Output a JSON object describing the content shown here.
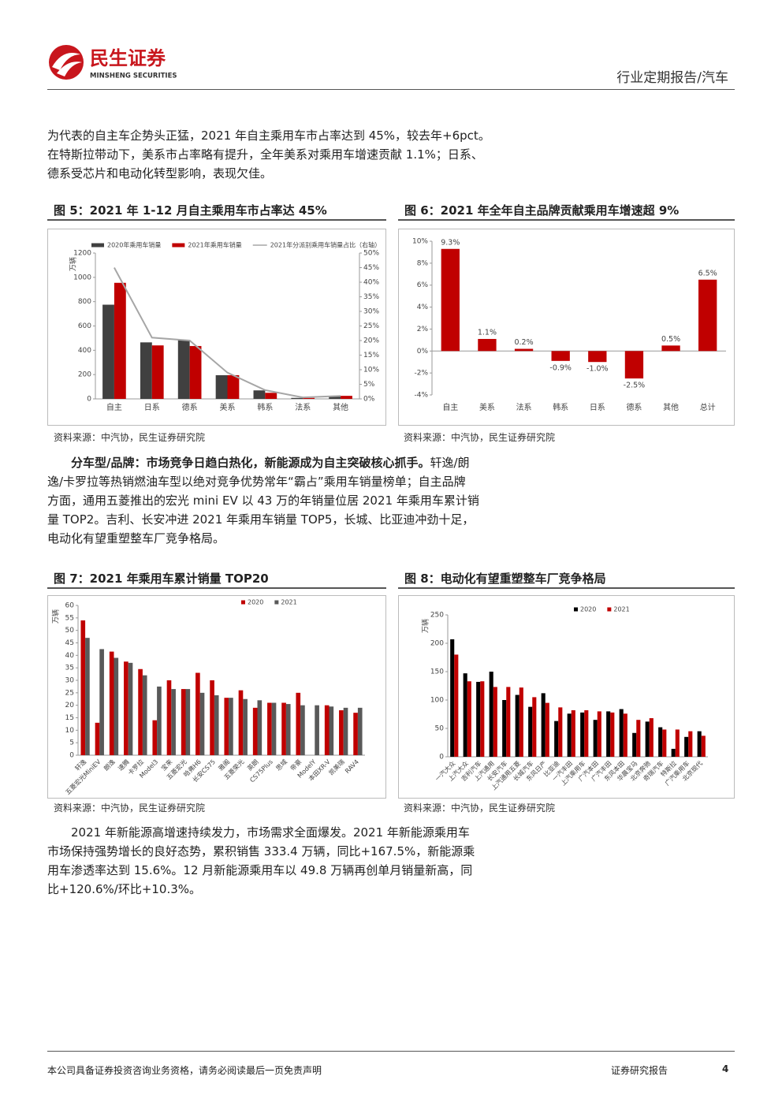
{
  "header": {
    "logo_cn": "民生证券",
    "logo_en": "MINSHENG SECURITIES",
    "right": "行业定期报告/汽车"
  },
  "paragraphs": [
    {
      "lines": [
        "为代表的自主车企势头正猛，2021 年自主乘用车市占率达到 45%，较去年+6pct。",
        "在特斯拉带动下，美系市占率略有提升，全年美系对乘用车增速贡献 1.1%；日系、",
        "德系受芯片和电动化转型影响，表现欠佳。"
      ]
    },
    {
      "lead": "分车型/品牌：市场竞争日趋白热化，新能源成为自主突破核心抓手。",
      "lines": [
        "轩逸/朗",
        "逸/卡罗拉等热销燃油车型以绝对竞争优势常年“霸占”乘用车销量榜单；自主品牌",
        "方面，通用五菱推出的宏光 mini EV 以 43 万的年销量位居 2021 年乘用车累计销",
        "量 TOP2。吉利、长安冲进 2021 年乘用车销量 TOP5，长城、比亚迪冲劲十足，",
        "电动化有望重塑整车厂竞争格局。"
      ]
    },
    {
      "lines": [
        "2021 年新能源高增速持续发力，市场需求全面爆发。2021 年新能源乘用车",
        "市场保持强势增长的良好态势，累积销售 333.4 万辆，同比+167.5%，新能源乘",
        "用车渗透率达到 15.6%。12 月新能源乘用车以 49.8 万辆再创单月销量新高，同",
        "比+120.6%/环比+10.3%。"
      ]
    }
  ],
  "chart_data": [
    {
      "type": "bar",
      "title": "图 5：2021 年 1-12 月自主乘用车市占率达 45%",
      "source": "资料来源：中汽协，民生证券研究院",
      "ylabel": "万辆",
      "categories": [
        "自主",
        "日系",
        "德系",
        "美系",
        "韩系",
        "法系",
        "其他"
      ],
      "series": [
        {
          "name": "2020年乘用车销量",
          "color": "#404040",
          "values": [
            775,
            465,
            485,
            195,
            70,
            8,
            20
          ]
        },
        {
          "name": "2021年乘用车销量",
          "color": "#c00000",
          "values": [
            955,
            440,
            435,
            195,
            50,
            8,
            25
          ]
        },
        {
          "name": "2021年分派别乘用车销量占比（右轴）",
          "color": "#a6a6a6",
          "type": "line",
          "axis": "y2",
          "values": [
            45,
            21,
            20,
            9,
            3,
            0.5,
            1
          ]
        }
      ],
      "ylim": [
        0,
        1200
      ],
      "yticks": [
        0,
        200,
        400,
        600,
        800,
        1000,
        1200
      ],
      "y2lim": [
        0,
        50
      ],
      "y2ticks": [
        {
          "value": 0,
          "label": "0%"
        },
        {
          "value": 5,
          "label": "5%"
        },
        {
          "value": 10,
          "label": "10%"
        },
        {
          "value": 15,
          "label": "15%"
        },
        {
          "value": 20,
          "label": "20%"
        },
        {
          "value": 25,
          "label": "25%"
        },
        {
          "value": 30,
          "label": "30%"
        },
        {
          "value": 35,
          "label": "35%"
        },
        {
          "value": 40,
          "label": "40%"
        },
        {
          "value": 45,
          "label": "45%"
        },
        {
          "value": 50,
          "label": "50%"
        }
      ],
      "legend": "top"
    },
    {
      "type": "bar",
      "title": "图 6：2021 年全年自主品牌贡献乘用车增速超 9%",
      "source": "资料来源：中汽协，民生证券研究院",
      "categories": [
        "自主",
        "美系",
        "法系",
        "韩系",
        "日系",
        "德系",
        "其他",
        "总计"
      ],
      "series": [
        {
          "color": "#c00000",
          "values": [
            9.3,
            1.1,
            0.2,
            -0.9,
            -1.0,
            -2.5,
            0.5,
            6.5
          ],
          "value_labels": [
            "9.3%",
            "1.1%",
            "0.2%",
            "-0.9%",
            "-1.0%",
            "-2.5%",
            "0.5%",
            "6.5%"
          ]
        }
      ],
      "ylim": [
        -4,
        10
      ],
      "yticks": [
        {
          "value": -4,
          "label": "-4%"
        },
        {
          "value": -2,
          "label": "-2%"
        },
        {
          "value": 0,
          "label": "0%"
        },
        {
          "value": 2,
          "label": "2%"
        },
        {
          "value": 4,
          "label": "4%"
        },
        {
          "value": 6,
          "label": "6%"
        },
        {
          "value": 8,
          "label": "8%"
        },
        {
          "value": 10,
          "label": "10%"
        }
      ]
    },
    {
      "type": "bar",
      "title": "图 7：2021 年乘用车累计销量 TOP20",
      "source": "资料来源：中汽协，民生证券研究院",
      "ylabel": "万辆",
      "x_label_rotation": 45,
      "categories": [
        "轩逸",
        "五菱宏光MiniEV",
        "朗逸",
        "速腾",
        "卡罗拉",
        "Model3",
        "宝来",
        "五菱宏光",
        "哈弗H6",
        "长安CS75",
        "雅阁",
        "五菱荣光",
        "英朗",
        "CS75Plus",
        "思域",
        "帝豪",
        "ModelY",
        "本田XR-V",
        "凯美瑞",
        "RAV4"
      ],
      "series": [
        {
          "name": "2020",
          "color": "#c00000",
          "values": [
            54,
            13,
            41.5,
            37.5,
            34.5,
            14,
            30,
            26.5,
            33,
            30,
            23,
            26,
            19,
            21,
            21,
            25,
            null,
            20,
            18,
            17
          ]
        },
        {
          "name": "2021",
          "color": "#595959",
          "values": [
            47,
            42.5,
            39,
            37,
            32,
            27.5,
            26.5,
            26.5,
            25,
            24,
            23,
            22.5,
            22,
            21,
            20.5,
            20,
            20,
            19.5,
            19,
            19
          ]
        }
      ],
      "ylim": [
        0,
        60
      ],
      "yticks": [
        0,
        5,
        10,
        15,
        20,
        25,
        30,
        35,
        40,
        45,
        50,
        55,
        60
      ],
      "legend": "top"
    },
    {
      "type": "bar",
      "title": "图 8：电动化有望重塑整车厂竞争格局",
      "source": "资料来源：中汽协，民生证券研究院",
      "ylabel": "万辆",
      "x_label_rotation": 45,
      "categories": [
        "一汽大众",
        "上汽大众",
        "吉利汽车",
        "上汽通用",
        "长安汽车",
        "上汽通用五菱",
        "长城汽车",
        "东风日产",
        "比亚迪",
        "一汽丰田",
        "上汽乘用车",
        "广汽本田",
        "广汽丰田",
        "东风本田",
        "华晨宝马",
        "北京奔驰",
        "奇瑞汽车",
        "特斯拉",
        "广汽乘用车",
        "北京现代"
      ],
      "series": [
        {
          "name": "2020",
          "color": "#000000",
          "values": [
            207,
            147,
            132,
            150,
            100,
            109,
            88,
            112,
            63,
            76,
            78,
            65,
            80,
            84,
            42,
            62,
            52,
            14,
            35,
            45
          ]
        },
        {
          "name": "2021",
          "color": "#c00000",
          "values": [
            180,
            133,
            133,
            123,
            123,
            122,
            105,
            95,
            87,
            82,
            82,
            80,
            78,
            76,
            65,
            68,
            48,
            48,
            45,
            37
          ]
        }
      ],
      "ylim": [
        0,
        250
      ],
      "yticks": [
        0,
        50,
        100,
        150,
        200,
        250
      ],
      "legend": "top"
    }
  ],
  "footer": {
    "left": "本公司具备证券投资咨询业务资格，请务必阅读最后一页免责声明",
    "right": "证券研究报告",
    "page": "4"
  }
}
